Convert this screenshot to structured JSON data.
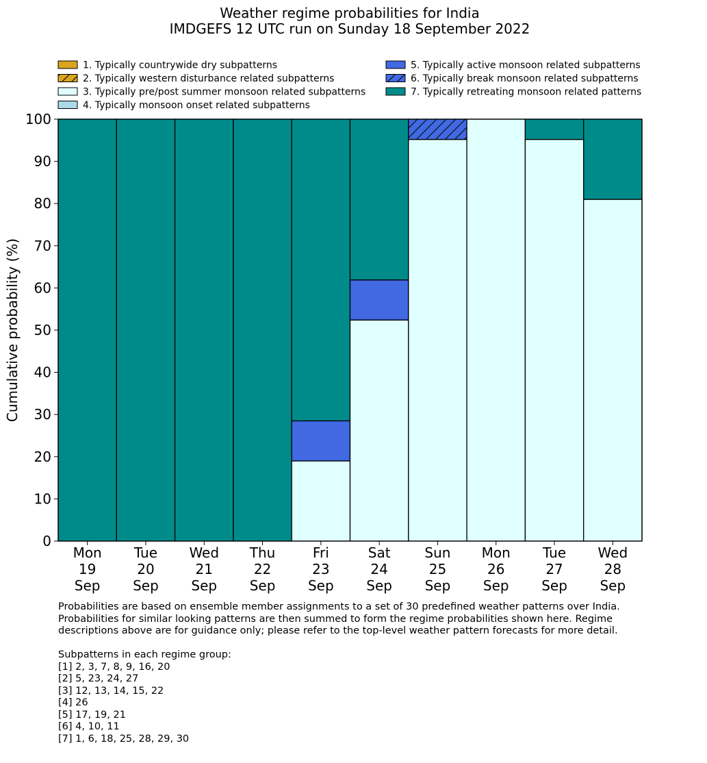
{
  "chart_data": {
    "type": "bar",
    "stacked": true,
    "title": "Weather regime probabilities for India",
    "subtitle": "IMDGEFS 12 UTC run on Sunday 18 September 2022",
    "ylabel": "Cumulative probability (%)",
    "xlabel": "",
    "ylim": [
      0,
      100
    ],
    "yticks": [
      0,
      10,
      20,
      30,
      40,
      50,
      60,
      70,
      80,
      90,
      100
    ],
    "grid": false,
    "legend_position": "top",
    "categories": [
      [
        "Mon",
        "19",
        "Sep"
      ],
      [
        "Tue",
        "20",
        "Sep"
      ],
      [
        "Wed",
        "21",
        "Sep"
      ],
      [
        "Thu",
        "22",
        "Sep"
      ],
      [
        "Fri",
        "23",
        "Sep"
      ],
      [
        "Sat",
        "24",
        "Sep"
      ],
      [
        "Sun",
        "25",
        "Sep"
      ],
      [
        "Mon",
        "26",
        "Sep"
      ],
      [
        "Tue",
        "27",
        "Sep"
      ],
      [
        "Wed",
        "28",
        "Sep"
      ]
    ],
    "series": [
      {
        "name": "1. Typically countrywide dry subpatterns",
        "color": "#daa520",
        "hatch": false,
        "values": [
          0,
          0,
          0,
          0,
          0,
          0,
          0,
          0,
          0,
          0
        ]
      },
      {
        "name": "2. Typically western disturbance related subpatterns",
        "color": "#daa520",
        "hatch": true,
        "values": [
          0,
          0,
          0,
          0,
          0,
          0,
          0,
          0,
          0,
          0
        ]
      },
      {
        "name": "3. Typically pre/post summer monsoon related subpatterns",
        "color": "#e0ffff",
        "hatch": false,
        "values": [
          0,
          0,
          0,
          0,
          19,
          52.4,
          95.2,
          100,
          95.2,
          81
        ]
      },
      {
        "name": "4. Typically monsoon onset related subpatterns",
        "color": "#add8e6",
        "hatch": false,
        "values": [
          0,
          0,
          0,
          0,
          0,
          0,
          0,
          0,
          0,
          0
        ]
      },
      {
        "name": "5. Typically active monsoon related subpatterns",
        "color": "#4169e1",
        "hatch": false,
        "values": [
          0,
          0,
          0,
          0,
          9.5,
          9.5,
          0,
          0,
          0,
          0
        ]
      },
      {
        "name": "6. Typically break monsoon related subpatterns",
        "color": "#4169e1",
        "hatch": true,
        "values": [
          0,
          0,
          0,
          0,
          0,
          0,
          4.8,
          0,
          0,
          0
        ]
      },
      {
        "name": "7. Typically retreating monsoon related patterns",
        "color": "#008b8b",
        "hatch": false,
        "values": [
          100,
          100,
          100,
          100,
          71.5,
          38.1,
          0,
          0,
          4.8,
          19
        ]
      }
    ],
    "legend_columns": [
      [
        0,
        1,
        2,
        3
      ],
      [
        4,
        5,
        6
      ]
    ]
  },
  "notes": {
    "paragraph": "Probabilities are based on ensemble member assignments to a set of 30 predefined weather patterns over India.\nProbabilities for similar looking patterns are then summed to form the regime probabilities shown here. Regime\ndescriptions above are for guidance only; please refer to the top-level weather pattern forecasts for more detail.",
    "groups_heading": "Subpatterns in each regime group:",
    "groups": [
      "[1] 2, 3, 7, 8, 9, 16, 20",
      "[2] 5, 23, 24, 27",
      "[3] 12, 13, 14, 15, 22",
      "[4] 26",
      "[5] 17, 19, 21",
      "[6] 4, 10, 11",
      "[7] 1, 6, 18, 25, 28, 29, 30"
    ]
  }
}
